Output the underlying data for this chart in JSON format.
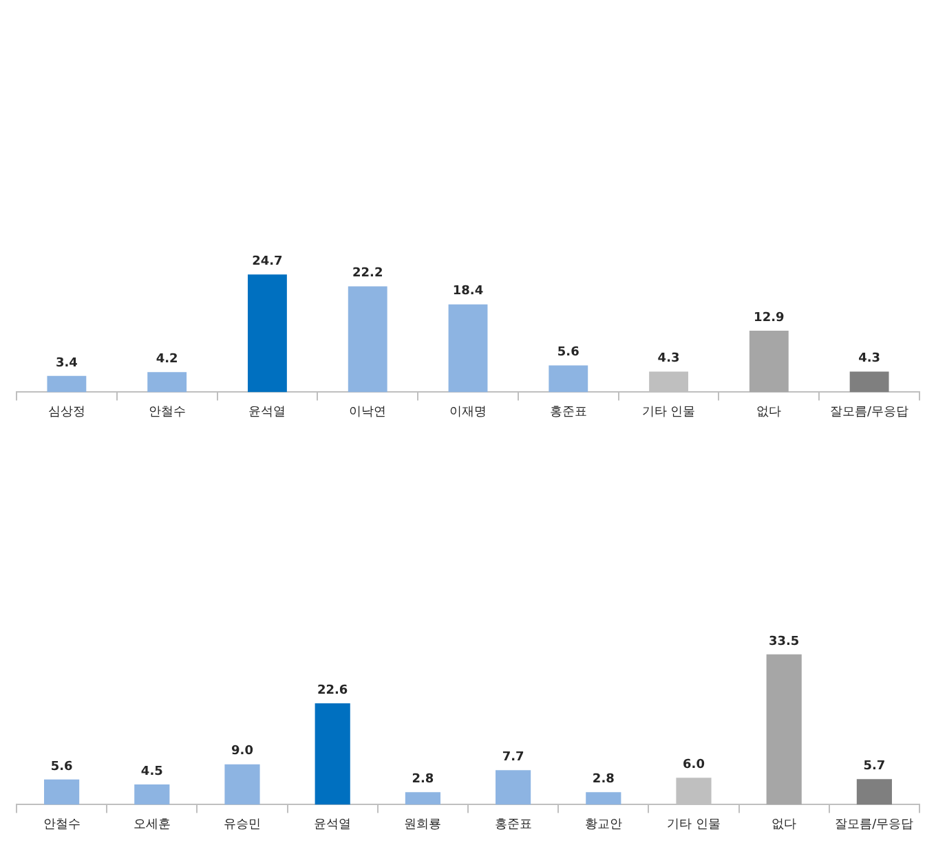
{
  "chart_data": [
    {
      "type": "bar",
      "categories": [
        "심상정",
        "안철수",
        "윤석열",
        "이낙연",
        "이재명",
        "홍준표",
        "기타 인물",
        "없다",
        "잘모름/무응답"
      ],
      "values": [
        3.4,
        4.2,
        24.7,
        22.2,
        18.4,
        5.6,
        4.3,
        12.9,
        4.3
      ],
      "value_labels": [
        "3.4",
        "4.2",
        "24.7",
        "22.2",
        "18.4",
        "5.6",
        "4.3",
        "12.9",
        "4.3"
      ],
      "colors": [
        "#8db4e2",
        "#8db4e2",
        "#0070c0",
        "#8db4e2",
        "#8db4e2",
        "#8db4e2",
        "#bfbfbf",
        "#a6a6a6",
        "#7f7f7f"
      ],
      "grid": false,
      "legend": false
    },
    {
      "type": "bar",
      "categories": [
        "안철수",
        "오세훈",
        "유승민",
        "윤석열",
        "원희룡",
        "홍준표",
        "황교안",
        "기타 인물",
        "없다",
        "잘모름/무응답"
      ],
      "values": [
        5.6,
        4.5,
        9,
        22.6,
        2.8,
        7.7,
        2.8,
        6,
        33.5,
        5.7
      ],
      "value_labels": [
        "5.6",
        "4.5",
        "9.0",
        "22.6",
        "2.8",
        "7.7",
        "2.8",
        "6.0",
        "33.5",
        "5.7"
      ],
      "colors": [
        "#8db4e2",
        "#8db4e2",
        "#8db4e2",
        "#0070c0",
        "#8db4e2",
        "#8db4e2",
        "#8db4e2",
        "#bfbfbf",
        "#a6a6a6",
        "#7f7f7f"
      ],
      "grid": false,
      "legend": false
    }
  ]
}
